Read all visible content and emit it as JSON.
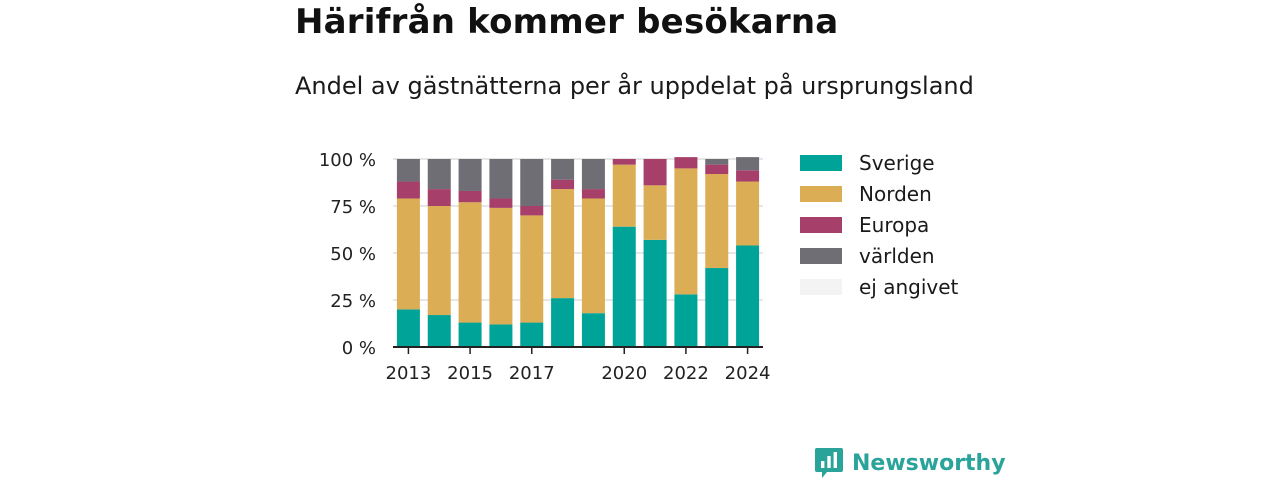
{
  "header": {
    "title": "Härifrån kommer besökarna",
    "subtitle": "Andel av gästnätterna per år uppdelat på ursprungsland"
  },
  "brand": {
    "name": "Newsworthy",
    "icon": "newsworthy-logo-icon",
    "color": "#2aa39a"
  },
  "chart_data": {
    "type": "bar",
    "stacked": true,
    "title": "Härifrån kommer besökarna",
    "subtitle": "Andel av gästnätterna per år uppdelat på ursprungsland",
    "categories": [
      "2013",
      "2014",
      "2015",
      "2016",
      "2017",
      "2018",
      "2019",
      "2020",
      "2021",
      "2022",
      "2023",
      "2024"
    ],
    "x_tick_labels": [
      "2013",
      "",
      "2015",
      "",
      "2017",
      "",
      "",
      "2020",
      "",
      "2022",
      "",
      "2024"
    ],
    "y_ticks": [
      0,
      25,
      50,
      75,
      100
    ],
    "y_tick_labels": [
      "0 %",
      "25 %",
      "50 %",
      "75 %",
      "100 %"
    ],
    "ylim": [
      0,
      100
    ],
    "grid": true,
    "legend_position": "right",
    "series": [
      {
        "name": "Sverige",
        "color": "#00a398",
        "values": [
          20,
          17,
          13,
          12,
          13,
          26,
          18,
          64,
          57,
          28,
          42,
          54
        ]
      },
      {
        "name": "Norden",
        "color": "#dbad55",
        "values": [
          59,
          58,
          64,
          62,
          57,
          58,
          61,
          33,
          29,
          67,
          50,
          34
        ]
      },
      {
        "name": "Europa",
        "color": "#a73f6b",
        "values": [
          9,
          9,
          6,
          5,
          5,
          5,
          5,
          3,
          14,
          6,
          5,
          6
        ]
      },
      {
        "name": "världen",
        "color": "#6f6e74",
        "values": [
          12,
          16,
          17,
          21,
          25,
          11,
          16,
          0,
          0,
          0,
          3,
          7
        ]
      },
      {
        "name": "ej angivet",
        "color": "#f3f3f3",
        "values": [
          0,
          0,
          0,
          0,
          0,
          0,
          0,
          0,
          0,
          0,
          0,
          0
        ]
      }
    ]
  }
}
